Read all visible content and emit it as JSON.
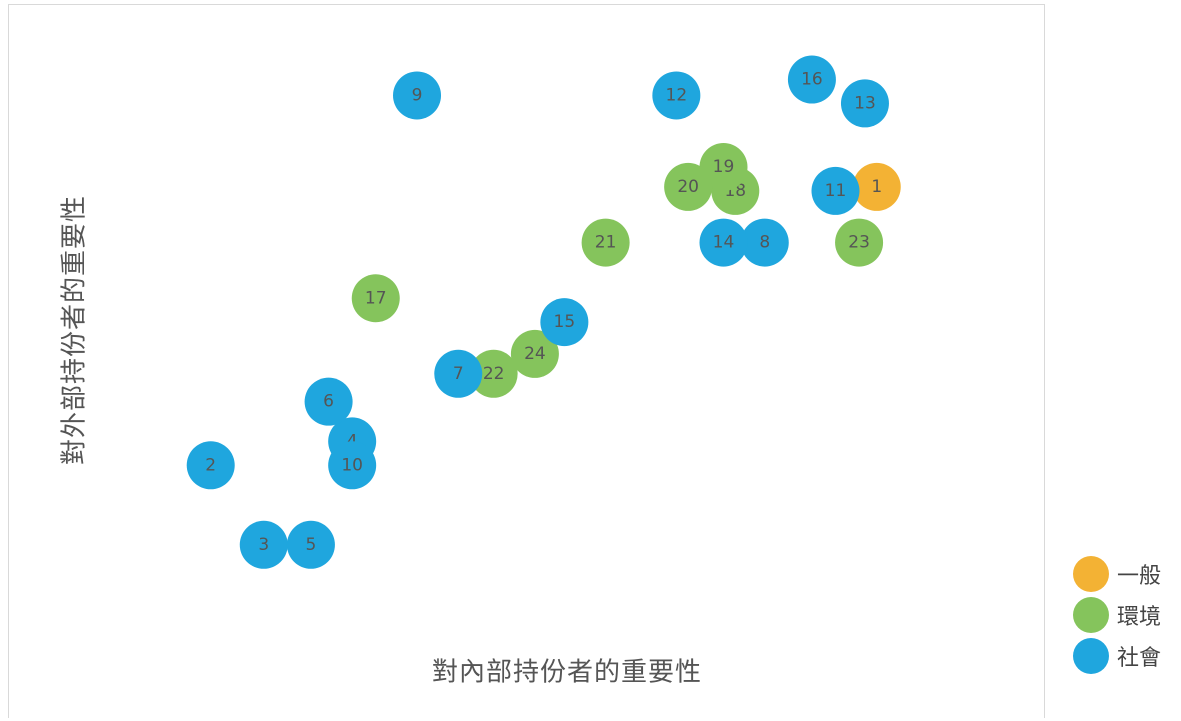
{
  "chart_data": {
    "type": "scatter",
    "xlabel": "對內部持份者的重要性",
    "ylabel": "對外部持份者的重要性",
    "grid": false,
    "legend_position": "bottom-right",
    "series": [
      {
        "name": "一般",
        "color": "#f3b234",
        "points": [
          {
            "id": "1",
            "x": 14.4,
            "y": 12.4
          }
        ]
      },
      {
        "name": "環境",
        "color": "#85c45c",
        "points": [
          {
            "id": "17",
            "x": 5.9,
            "y": 9.6
          },
          {
            "id": "18",
            "x": 12.0,
            "y": 12.3
          },
          {
            "id": "19",
            "x": 11.8,
            "y": 12.9
          },
          {
            "id": "20",
            "x": 11.2,
            "y": 12.4
          },
          {
            "id": "21",
            "x": 9.8,
            "y": 11.0
          },
          {
            "id": "22",
            "x": 7.9,
            "y": 7.7
          },
          {
            "id": "23",
            "x": 14.1,
            "y": 11.0
          },
          {
            "id": "24",
            "x": 8.6,
            "y": 8.2
          }
        ]
      },
      {
        "name": "社會",
        "color": "#1fa6de",
        "points": [
          {
            "id": "2",
            "x": 3.1,
            "y": 5.4
          },
          {
            "id": "3",
            "x": 4.0,
            "y": 3.4
          },
          {
            "id": "4",
            "x": 5.5,
            "y": 6.0
          },
          {
            "id": "5",
            "x": 4.8,
            "y": 3.4
          },
          {
            "id": "6",
            "x": 5.1,
            "y": 7.0
          },
          {
            "id": "7",
            "x": 7.3,
            "y": 7.7
          },
          {
            "id": "8",
            "x": 12.5,
            "y": 11.0
          },
          {
            "id": "9",
            "x": 6.6,
            "y": 14.7
          },
          {
            "id": "10",
            "x": 5.5,
            "y": 5.4
          },
          {
            "id": "11",
            "x": 13.7,
            "y": 12.3
          },
          {
            "id": "12",
            "x": 11.0,
            "y": 14.7
          },
          {
            "id": "13",
            "x": 14.2,
            "y": 14.5
          },
          {
            "id": "14",
            "x": 11.8,
            "y": 11.0
          },
          {
            "id": "15",
            "x": 9.1,
            "y": 9.0
          },
          {
            "id": "16",
            "x": 13.3,
            "y": 15.1
          }
        ]
      }
    ],
    "xlim": [
      0,
      17
    ],
    "ylim": [
      0,
      17
    ]
  }
}
